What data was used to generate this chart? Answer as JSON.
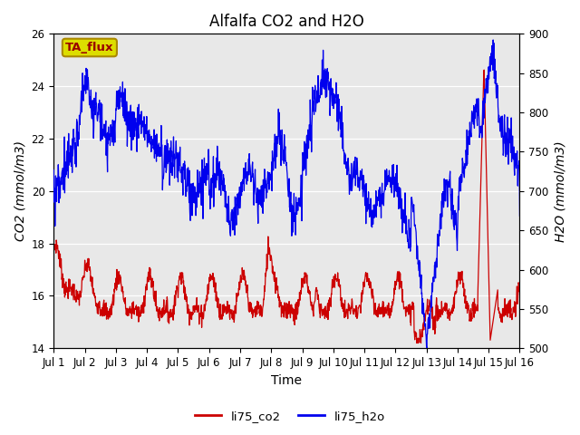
{
  "title": "Alfalfa CO2 and H2O",
  "xlabel": "Time",
  "ylabel_left": "CO2 (mmol/m3)",
  "ylabel_right": "H2O (mmol/m3)",
  "ylim_left": [
    14,
    26
  ],
  "ylim_right": [
    500,
    900
  ],
  "yticks_left": [
    14,
    16,
    18,
    20,
    22,
    24,
    26
  ],
  "yticks_right": [
    500,
    550,
    600,
    650,
    700,
    750,
    800,
    850,
    900
  ],
  "xtick_labels": [
    "Jul 1",
    "Jul 2",
    "Jul 3",
    "Jul 4",
    "Jul 5",
    "Jul 6",
    "Jul 7",
    "Jul 8",
    "Jul 9",
    "Jul 10",
    "Jul 11",
    "Jul 12",
    "Jul 13",
    "Jul 14",
    "Jul 15",
    "Jul 16"
  ],
  "color_co2": "#cc0000",
  "color_h2o": "#0000ee",
  "legend_label_co2": "li75_co2",
  "legend_label_h2o": "li75_h2o",
  "annotation_text": "TA_flux",
  "annotation_bg": "#dddd00",
  "annotation_border": "#aa8800",
  "bg_color": "#e8e8e8",
  "title_fontsize": 12,
  "axis_label_fontsize": 10,
  "tick_fontsize": 8.5
}
